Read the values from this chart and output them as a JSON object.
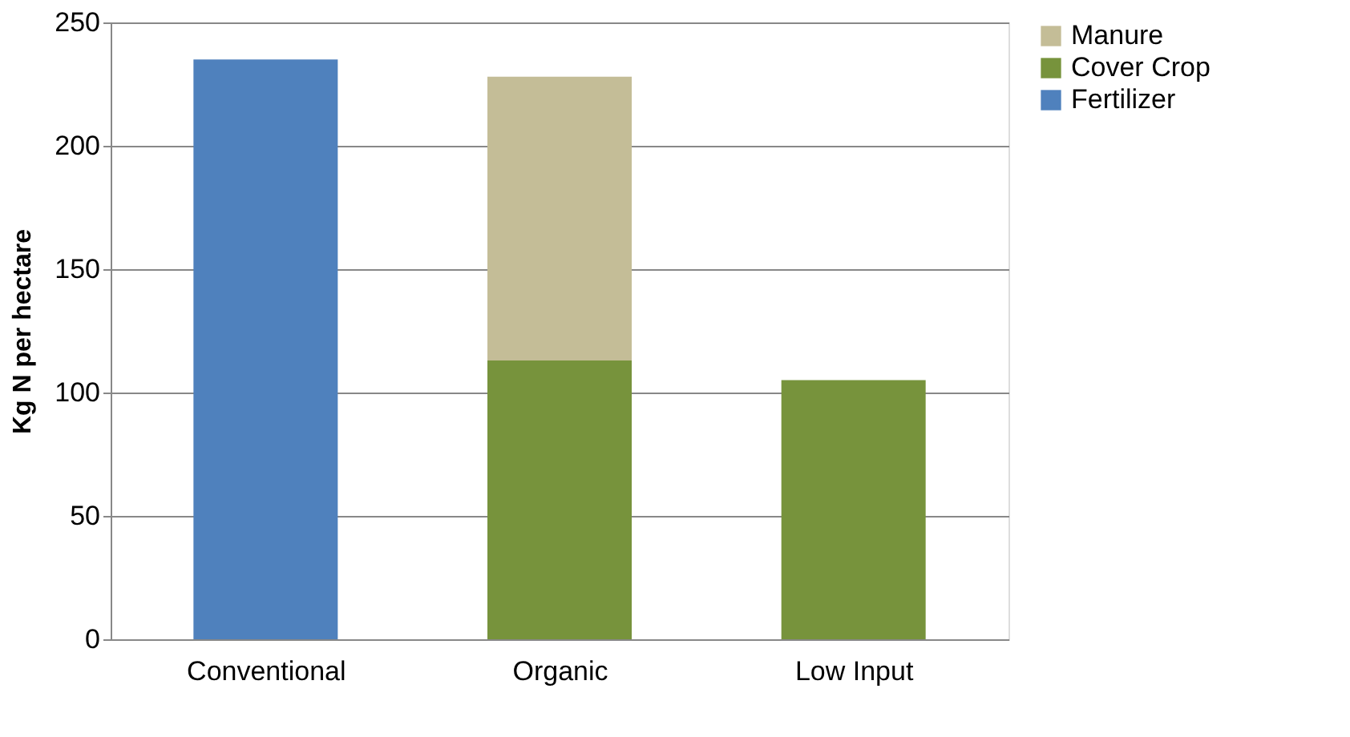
{
  "chart_data": {
    "type": "bar",
    "stacked": true,
    "ylabel": "Kg N per hectare",
    "categories": [
      "Conventional",
      "Organic",
      "Low Input"
    ],
    "series": [
      {
        "name": "Fertilizer",
        "color": "#4f81bd",
        "values": [
          235,
          null,
          null
        ]
      },
      {
        "name": "Cover Crop",
        "color": "#77933c",
        "values": [
          null,
          113,
          105
        ]
      },
      {
        "name": "Manure",
        "color": "#c4bd97",
        "values": [
          null,
          115,
          null
        ]
      }
    ],
    "ylim": [
      0,
      250
    ],
    "yticks": [
      0,
      50,
      100,
      150,
      200,
      250
    ],
    "grid": "y",
    "legend": "right"
  }
}
